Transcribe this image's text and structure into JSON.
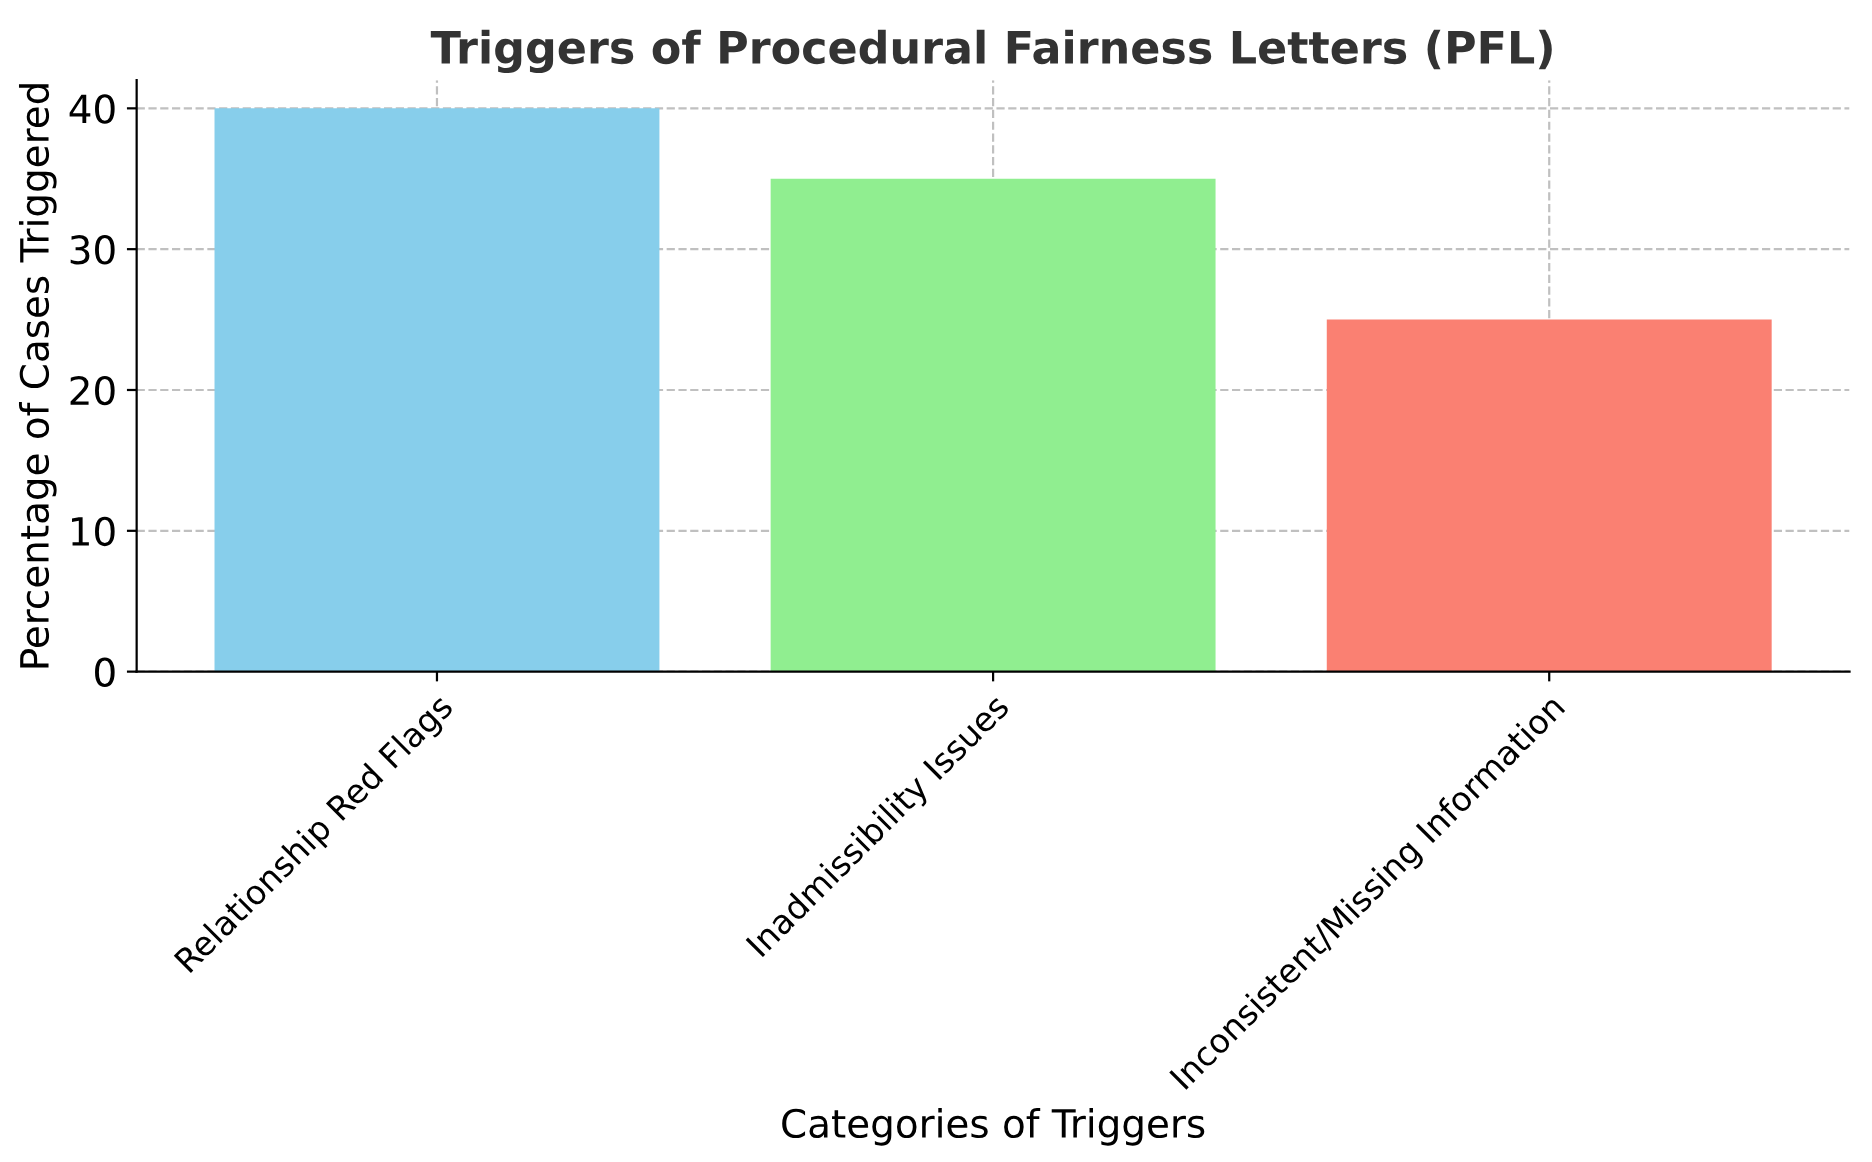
{
  "chart_data": {
    "type": "bar",
    "title": "Triggers of Procedural Fairness Letters (PFL)",
    "xlabel": "Categories of Triggers",
    "ylabel": "Percentage of Cases Triggered",
    "categories": [
      "Relationship Red Flags",
      "Inadmissibility Issues",
      "Inconsistent/Missing Information"
    ],
    "values": [
      40,
      35,
      25
    ],
    "colors": [
      "#87ceeb",
      "#90ee90",
      "#fa8072"
    ],
    "ylim": [
      0,
      42
    ],
    "yticks": [
      0,
      10,
      20,
      30,
      40
    ],
    "grid": true
  }
}
